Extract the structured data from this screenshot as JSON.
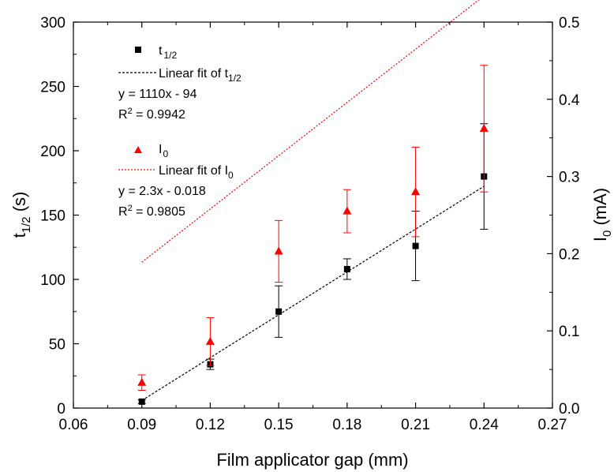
{
  "chart_data": {
    "type": "scatter",
    "xlabel": "Film applicator gap (mm)",
    "ylabel_main": "t",
    "ylabel_sub": "1/2",
    "ylabel_unit": " (s)",
    "y2label_main": "I",
    "y2label_sub": "0",
    "y2label_unit": " (mA)",
    "xlim": [
      0.06,
      0.27
    ],
    "ylim": [
      0,
      300
    ],
    "y2lim": [
      0,
      0.5
    ],
    "xticks": [
      "0.06",
      "0.09",
      "0.12",
      "0.15",
      "0.18",
      "0.21",
      "0.24",
      "0.27"
    ],
    "xtick_values": [
      0.06,
      0.09,
      0.12,
      0.15,
      0.18,
      0.21,
      0.24,
      0.27
    ],
    "yticks": [
      "0",
      "50",
      "100",
      "150",
      "200",
      "250",
      "300"
    ],
    "ytick_values": [
      0,
      50,
      100,
      150,
      200,
      250,
      300
    ],
    "y2ticks": [
      "0.0",
      "0.1",
      "0.2",
      "0.3",
      "0.4",
      "0.5"
    ],
    "y2tick_values": [
      0,
      0.1,
      0.2,
      0.3,
      0.4,
      0.5
    ],
    "grid": false,
    "legend_position": "top-left",
    "series": [
      {
        "name_main": "t",
        "name_sub": "1/2",
        "axis": "left",
        "marker": "square",
        "color": "#000000",
        "x": [
          0.09,
          0.12,
          0.15,
          0.18,
          0.21,
          0.24
        ],
        "y": [
          5,
          34,
          75,
          108,
          126,
          180
        ],
        "err": [
          1.5,
          4,
          20,
          8,
          27,
          41
        ],
        "fit_label_main": "Linear fit of t",
        "fit_label_sub": "1/2",
        "fit_slope": 1110,
        "fit_intercept": -94,
        "equation": "y = 1110x - 94",
        "r2_value": " = 0.9942"
      },
      {
        "name_main": "I",
        "name_sub": "0",
        "axis": "right",
        "marker": "triangle",
        "color": "#ff0000",
        "x": [
          0.09,
          0.12,
          0.15,
          0.18,
          0.21,
          0.24
        ],
        "y": [
          0.033,
          0.086,
          0.203,
          0.255,
          0.28,
          0.362
        ],
        "err": [
          0.01,
          0.031,
          0.04,
          0.028,
          0.058,
          0.082
        ],
        "fit_label_main": "Linear fit of I",
        "fit_label_sub": "0",
        "fit_slope": 2.3,
        "fit_intercept": -0.018,
        "equation": "y = 2.3x - 0.018",
        "r2_value": " = 0.9805"
      }
    ]
  }
}
